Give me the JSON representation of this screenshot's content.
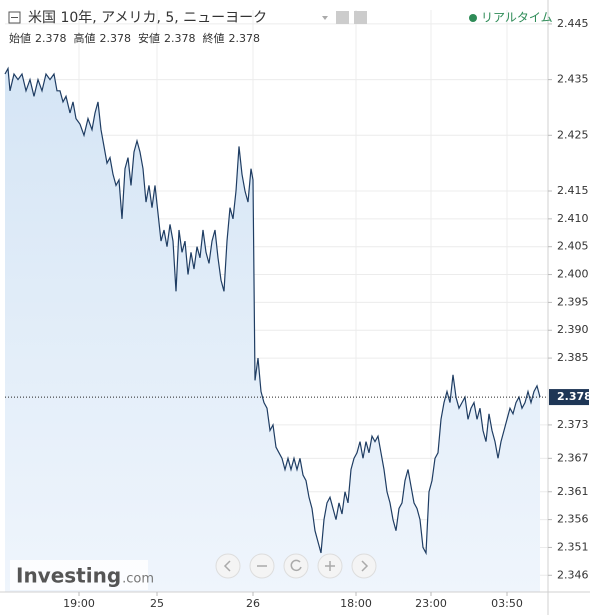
{
  "chart_data": {
    "type": "line",
    "title": "米国 10年, アメリカ, 5, ニューヨーク",
    "status": "リアルタイム",
    "ohlc": [
      {
        "label": "始値",
        "value": 2.378
      },
      {
        "label": "高値",
        "value": 2.378
      },
      {
        "label": "安値",
        "value": 2.378
      },
      {
        "label": "終値",
        "value": 2.378
      }
    ],
    "last_value": 2.378,
    "brand": {
      "name": "Investing",
      "suffix": ".com"
    },
    "xlim": [
      0,
      543
    ],
    "ylim": [
      2.343,
      2.4475
    ],
    "xticks": [
      {
        "value": 74,
        "label": "19:00"
      },
      {
        "value": 152,
        "label": "25"
      },
      {
        "value": 248,
        "label": "26"
      },
      {
        "value": 351,
        "label": "18:00"
      },
      {
        "value": 426,
        "label": "23:00"
      },
      {
        "value": 502,
        "label": "03:50"
      }
    ],
    "yticks": [
      2.445,
      2.435,
      2.425,
      2.415,
      {
        "value": 2.41,
        "label": "2.410"
      },
      2.405,
      {
        "value": 2.4,
        "label": "2.400"
      },
      2.395,
      {
        "value": 2.39,
        "label": "2.390"
      },
      2.385,
      2.373,
      2.367,
      2.361,
      2.356,
      2.351,
      2.346
    ],
    "grid": true,
    "series": [
      {
        "color": "#1f3d63",
        "x": [
          0,
          3,
          5,
          9,
          13,
          17,
          21,
          25,
          29,
          33,
          37,
          41,
          45,
          49,
          52,
          55,
          58,
          61,
          65,
          68,
          71,
          75,
          79,
          83,
          87,
          90,
          93,
          96,
          99,
          102,
          105,
          108,
          111,
          114,
          117,
          120,
          123,
          126,
          129,
          132,
          135,
          138,
          141,
          144,
          147,
          150,
          153,
          156,
          159,
          162,
          165,
          168,
          171,
          174,
          177,
          180,
          183,
          186,
          189,
          192,
          195,
          198,
          201,
          204,
          207,
          210,
          213,
          216,
          219,
          222,
          225,
          228,
          231,
          234,
          237,
          240,
          243,
          246,
          248,
          250,
          253,
          256,
          259,
          262,
          265,
          268,
          271,
          274,
          277,
          280,
          283,
          286,
          289,
          292,
          295,
          298,
          301,
          304,
          307,
          310,
          313,
          316,
          319,
          322,
          325,
          328,
          331,
          334,
          337,
          340,
          343,
          346,
          349,
          352,
          355,
          358,
          361,
          364,
          367,
          370,
          373,
          376,
          379,
          382,
          385,
          388,
          391,
          394,
          397,
          400,
          403,
          406,
          409,
          412,
          415,
          418,
          421,
          424,
          427,
          430,
          433,
          436,
          439,
          442,
          445,
          448,
          451,
          454,
          457,
          460,
          463,
          466,
          469,
          472,
          475,
          478,
          481,
          484,
          487,
          490,
          493,
          496,
          499,
          502,
          505,
          508,
          511,
          514,
          517,
          520,
          523,
          526,
          529,
          532,
          535
        ],
        "values": [
          2.436,
          2.437,
          2.433,
          2.436,
          2.435,
          2.436,
          2.433,
          2.435,
          2.432,
          2.435,
          2.433,
          2.436,
          2.435,
          2.436,
          2.433,
          2.433,
          2.431,
          2.432,
          2.429,
          2.431,
          2.428,
          2.427,
          2.425,
          2.428,
          2.426,
          2.429,
          2.431,
          2.426,
          2.423,
          2.42,
          2.421,
          2.418,
          2.416,
          2.417,
          2.41,
          2.419,
          2.421,
          2.416,
          2.422,
          2.424,
          2.422,
          2.419,
          2.413,
          2.416,
          2.412,
          2.416,
          2.411,
          2.406,
          2.408,
          2.405,
          2.409,
          2.406,
          2.397,
          2.408,
          2.404,
          2.406,
          2.4,
          2.404,
          2.401,
          2.405,
          2.403,
          2.408,
          2.404,
          2.402,
          2.406,
          2.408,
          2.403,
          2.399,
          2.397,
          2.406,
          2.412,
          2.41,
          2.415,
          2.423,
          2.418,
          2.415,
          2.413,
          2.419,
          2.417,
          2.381,
          2.385,
          2.379,
          2.377,
          2.376,
          2.372,
          2.373,
          2.369,
          2.368,
          2.367,
          2.365,
          2.367,
          2.365,
          2.367,
          2.365,
          2.367,
          2.364,
          2.363,
          2.36,
          2.358,
          2.354,
          2.352,
          2.35,
          2.356,
          2.359,
          2.36,
          2.358,
          2.356,
          2.359,
          2.357,
          2.361,
          2.359,
          2.365,
          2.367,
          2.368,
          2.37,
          2.367,
          2.37,
          2.368,
          2.371,
          2.37,
          2.371,
          2.368,
          2.365,
          2.361,
          2.359,
          2.356,
          2.354,
          2.358,
          2.359,
          2.363,
          2.365,
          2.362,
          2.359,
          2.358,
          2.356,
          2.351,
          2.35,
          2.361,
          2.363,
          2.367,
          2.368,
          2.374,
          2.377,
          2.379,
          2.377,
          2.382,
          2.378,
          2.376,
          2.377,
          2.378,
          2.374,
          2.376,
          2.377,
          2.374,
          2.376,
          2.372,
          2.37,
          2.375,
          2.372,
          2.37,
          2.367,
          2.37,
          2.372,
          2.374,
          2.376,
          2.375,
          2.377,
          2.378,
          2.376,
          2.377,
          2.379,
          2.377,
          2.379,
          2.38,
          2.378
        ]
      }
    ]
  }
}
